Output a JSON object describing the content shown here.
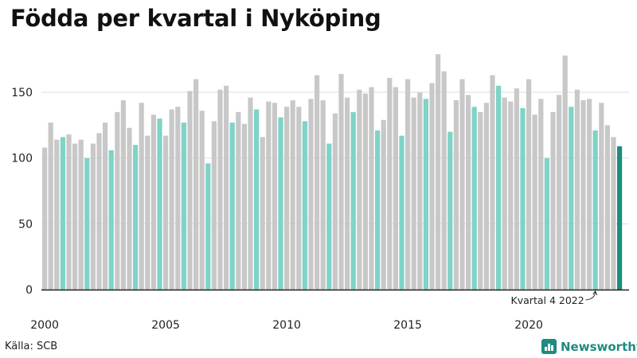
{
  "title": "Födda per kvartal i Nyköping",
  "source": "Källa: SCB",
  "brand": "Newsworthy",
  "colors": {
    "bar_default": "#c8c8c8",
    "bar_quarter4": "#7fd3c7",
    "bar_latest": "#1e8c80",
    "grid": "#dddddd",
    "axis": "#222222",
    "text": "#222222"
  },
  "chart_data": {
    "type": "bar",
    "title": "Födda per kvartal i Nyköping",
    "xlabel": "",
    "ylabel": "",
    "ylim": [
      0,
      180
    ],
    "yticks": [
      0,
      50,
      100,
      150
    ],
    "grid": true,
    "x_tick_labels": [
      "2000",
      "2005",
      "2010",
      "2015",
      "2020"
    ],
    "x_tick_years": [
      2000,
      2005,
      2010,
      2015,
      2020
    ],
    "start_year": 2000,
    "start_quarter": 1,
    "highlight_quarter": 4,
    "annotation": {
      "text": "Kvartal 4 2022",
      "target_year": 2022,
      "target_quarter": 4
    },
    "values": [
      108,
      127,
      114,
      116,
      118,
      111,
      114,
      100,
      111,
      119,
      127,
      106,
      135,
      144,
      123,
      110,
      142,
      117,
      133,
      130,
      117,
      137,
      139,
      127,
      151,
      160,
      136,
      96,
      128,
      152,
      155,
      127,
      135,
      126,
      146,
      137,
      116,
      143,
      142,
      131,
      139,
      144,
      139,
      128,
      145,
      163,
      144,
      111,
      134,
      164,
      146,
      135,
      152,
      149,
      154,
      121,
      129,
      161,
      154,
      117,
      160,
      146,
      150,
      145,
      157,
      179,
      166,
      120,
      144,
      160,
      148,
      139,
      135,
      142,
      163,
      155,
      146,
      143,
      153,
      138,
      160,
      133,
      145,
      100,
      135,
      148,
      178,
      139,
      152,
      144,
      145,
      121,
      142,
      125,
      116,
      109
    ]
  }
}
